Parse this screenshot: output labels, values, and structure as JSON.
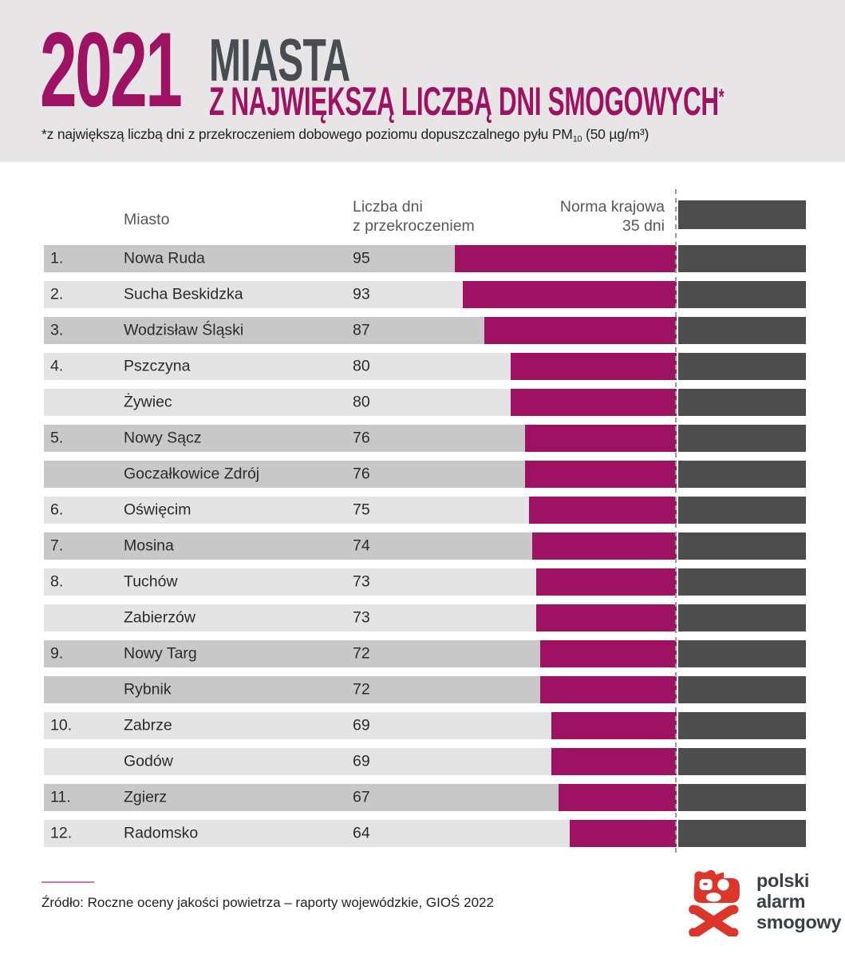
{
  "header": {
    "year": "2021",
    "title_line1": "MIASTA",
    "title_line2": "Z NAJWIĘKSZĄ LICZBĄ DNI SMOGOWYCH",
    "title_asterisk": "*",
    "footnote_prefix": "*z największą liczbą dni z przekroczeniem dobowego poziomu dopuszczalnego pyłu PM",
    "footnote_sub": "10",
    "footnote_suffix": " (50 µg/m³)"
  },
  "table": {
    "col_city": "Miasto",
    "col_days_line1": "Liczba dni",
    "col_days_line2": "z przekroczeniem",
    "col_norm_line1": "Norma krajowa",
    "col_norm_line2": "35 dni",
    "norm_days": 35,
    "rows": [
      {
        "rank": "1.",
        "city": "Nowa Ruda",
        "days": 95,
        "shade": "dark"
      },
      {
        "rank": "2.",
        "city": "Sucha Beskidzka",
        "days": 93,
        "shade": "light"
      },
      {
        "rank": "3.",
        "city": "Wodzisław Śląski",
        "days": 87,
        "shade": "dark"
      },
      {
        "rank": "4.",
        "city": "Pszczyna",
        "days": 80,
        "shade": "light"
      },
      {
        "rank": "",
        "city": "Żywiec",
        "days": 80,
        "shade": "light"
      },
      {
        "rank": "5.",
        "city": "Nowy Sącz",
        "days": 76,
        "shade": "dark"
      },
      {
        "rank": "",
        "city": "Goczałkowice Zdrój",
        "days": 76,
        "shade": "dark"
      },
      {
        "rank": "6.",
        "city": "Oświęcim",
        "days": 75,
        "shade": "light"
      },
      {
        "rank": "7.",
        "city": "Mosina",
        "days": 74,
        "shade": "dark"
      },
      {
        "rank": "8.",
        "city": "Tuchów",
        "days": 73,
        "shade": "light"
      },
      {
        "rank": "",
        "city": "Zabierzów",
        "days": 73,
        "shade": "light"
      },
      {
        "rank": "9.",
        "city": "Nowy Targ",
        "days": 72,
        "shade": "dark"
      },
      {
        "rank": "",
        "city": "Rybnik",
        "days": 72,
        "shade": "dark"
      },
      {
        "rank": "10.",
        "city": "Zabrze",
        "days": 69,
        "shade": "light"
      },
      {
        "rank": "",
        "city": "Godów",
        "days": 69,
        "shade": "light"
      },
      {
        "rank": "11.",
        "city": "Zgierz",
        "days": 67,
        "shade": "dark"
      },
      {
        "rank": "12.",
        "city": "Radomsko",
        "days": 64,
        "shade": "light"
      }
    ]
  },
  "footer": {
    "source": "Źródło: Roczne oceny jakości powietrza – raporty wojewódzkie, GIOŚ 2022",
    "logo_line1": "polski",
    "logo_line2": "alarm",
    "logo_line3": "smogowy"
  },
  "colors": {
    "accent_magenta": "#9E1263",
    "title_dark": "#474D52",
    "norm_bar_gray": "#4D4D4D",
    "row_dark": "#C8C8C8",
    "row_light": "#E4E4E4",
    "band_bg": "#E7E5E6",
    "page_bg": "#FFFFFF",
    "header_text": "#54575B",
    "body_text": "#2B2B2B",
    "dashed_line": "#999999",
    "source_rule": "#C479AC",
    "logo_red": "#DC362A",
    "logo_text": "#394047"
  },
  "chart_data": {
    "type": "bar",
    "orientation": "horizontal",
    "title": "2021 MIASTA Z NAJWIĘKSZĄ LICZBĄ DNI SMOGOWYCH*",
    "footnote": "*z największą liczbą dni z przekroczeniem dobowego poziomu dopuszczalnego pyłu PM10 (50 µg/m³)",
    "value_label": "Liczba dni z przekroczeniem",
    "unit": "dni",
    "categories": [
      "Nowa Ruda",
      "Sucha Beskidzka",
      "Wodzisław Śląski",
      "Pszczyna",
      "Żywiec",
      "Nowy Sącz",
      "Goczałkowice Zdrój",
      "Oświęcim",
      "Mosina",
      "Tuchów",
      "Zabierzów",
      "Nowy Targ",
      "Rybnik",
      "Zabrze",
      "Godów",
      "Zgierz",
      "Radomsko"
    ],
    "values": [
      95,
      93,
      87,
      80,
      80,
      76,
      76,
      75,
      74,
      73,
      73,
      72,
      72,
      69,
      69,
      67,
      64
    ],
    "ranks": [
      "1.",
      "2.",
      "3.",
      "4.",
      "",
      "5.",
      "",
      "6.",
      "7.",
      "8.",
      "",
      "9.",
      "",
      "10.",
      "",
      "11.",
      "12."
    ],
    "reference_line": {
      "label": "Norma krajowa 35 dni",
      "value": 35
    },
    "legend_position": "none",
    "grid": false,
    "source": "Źródło: Roczne oceny jakości powietrza – raporty wojewódzkie, GIOŚ 2022"
  }
}
